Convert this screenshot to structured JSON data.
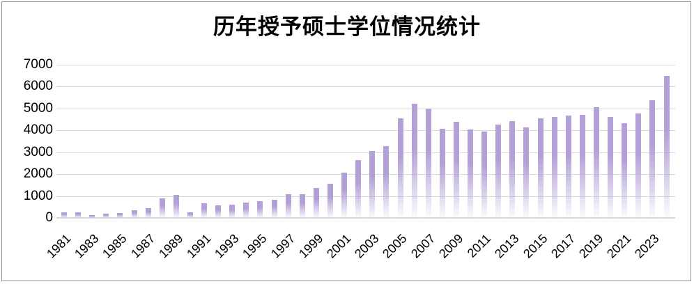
{
  "window": {
    "background": "#ffffff",
    "border_color": "#8f8f8f"
  },
  "chart_data": {
    "type": "bar",
    "title": "历年授予硕士学位情况统计",
    "x": [
      1981,
      1982,
      1983,
      1984,
      1985,
      1986,
      1987,
      1988,
      1989,
      1990,
      1991,
      1992,
      1993,
      1994,
      1995,
      1996,
      1997,
      1998,
      1999,
      2000,
      2001,
      2002,
      2003,
      2004,
      2005,
      2006,
      2007,
      2008,
      2009,
      2010,
      2011,
      2012,
      2013,
      2014,
      2015,
      2016,
      2017,
      2018,
      2019,
      2020,
      2021,
      2022,
      2023,
      2024
    ],
    "values": [
      260,
      270,
      140,
      190,
      220,
      350,
      440,
      880,
      1060,
      240,
      660,
      570,
      610,
      690,
      750,
      840,
      1080,
      1070,
      1380,
      1560,
      2060,
      2650,
      3050,
      3270,
      4550,
      5230,
      5000,
      4070,
      4400,
      4030,
      3950,
      4270,
      4420,
      4150,
      4560,
      4620,
      4690,
      4720,
      5050,
      4620,
      4320,
      4760,
      5380,
      6500
    ],
    "xlabel": "",
    "ylabel": "",
    "ylim": [
      0,
      7000
    ],
    "ytick_interval": 1000,
    "ytick_labels": [
      "0",
      "1000",
      "2000",
      "3000",
      "4000",
      "5000",
      "6000",
      "7000"
    ],
    "xtick_labels": [
      "1981",
      "1983",
      "1985",
      "1987",
      "1989",
      "1991",
      "1993",
      "1995",
      "1997",
      "1999",
      "2001",
      "2003",
      "2005",
      "2007",
      "2009",
      "2011",
      "2013",
      "2015",
      "2017",
      "2019",
      "2021",
      "2023"
    ],
    "grid": true,
    "legend_position": "none",
    "bar_color": "#b2a0d6",
    "bar_fade_color": "rgba(178,160,214,0.04)",
    "gridline_color": "#d9d9d9",
    "text_color": "#000000"
  }
}
